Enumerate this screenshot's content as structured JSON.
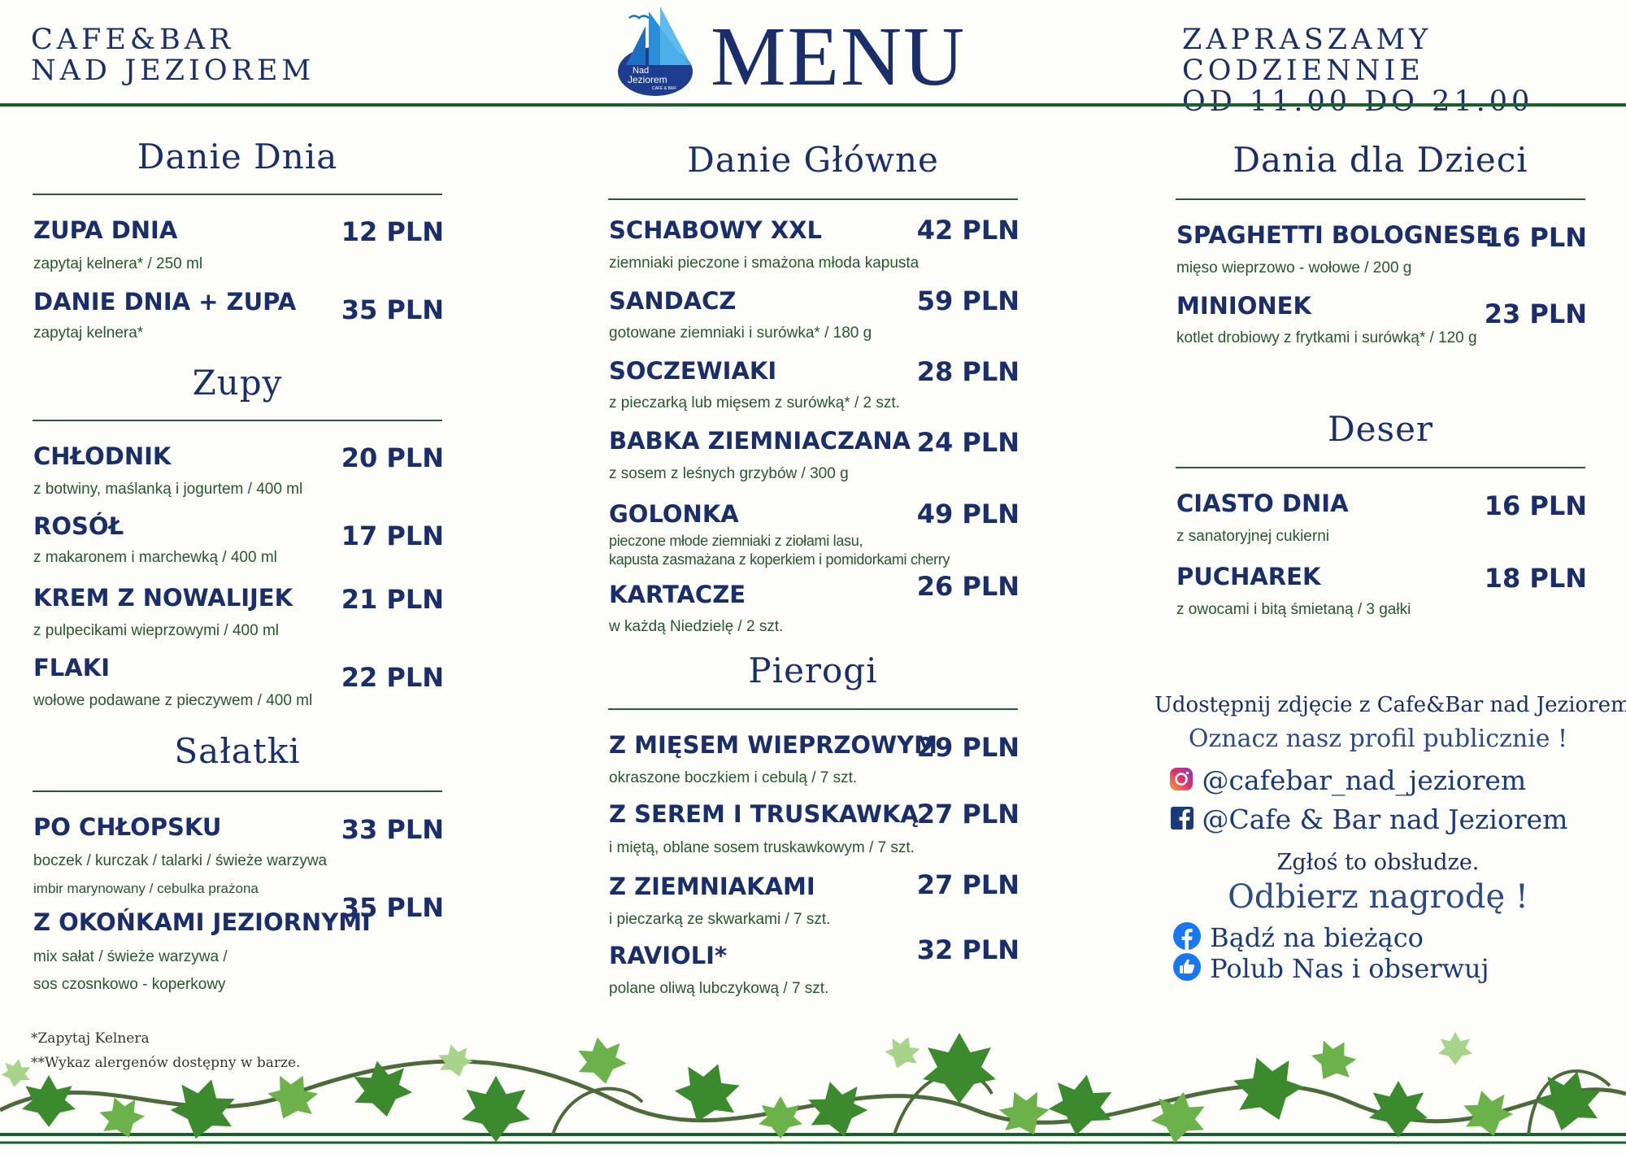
{
  "header": {
    "brand_line1": "CAFE&BAR",
    "brand_line2": "NAD JEZIOREM",
    "title": "MENU",
    "logo_text_line1": "Nad",
    "logo_text_line2": "Jeziorem",
    "logo_text_line3": "CAFE & BAR",
    "hours_line1": "ZAPRASZAMY CODZIENNIE",
    "hours_line2": "OD 11.00 DO 21.00"
  },
  "danie_dnia": {
    "heading": "Danie Dnia",
    "items": [
      {
        "name": "ZUPA DNIA",
        "desc": "zapytaj kelnera* / 250 ml",
        "price": "12 PLN"
      },
      {
        "name": "DANIE DNIA + ZUPA",
        "desc": "zapytaj kelnera*",
        "price": "35 PLN"
      }
    ]
  },
  "zupy": {
    "heading": "Zupy",
    "items": [
      {
        "name": "CHŁODNIK",
        "desc": "z botwiny, maślanką i jogurtem / 400 ml",
        "price": "20 PLN"
      },
      {
        "name": "ROSÓŁ",
        "desc": "z makaronem i marchewką / 400 ml",
        "price": "17 PLN"
      },
      {
        "name": "KREM Z NOWALIJEK",
        "desc": "z pulpecikami wieprzowymi / 400 ml",
        "price": "21 PLN"
      },
      {
        "name": "FLAKI",
        "desc": "wołowe podawane z pieczywem / 400 ml",
        "price": "22 PLN"
      }
    ]
  },
  "salatki": {
    "heading": "Sałatki",
    "items": [
      {
        "name": "PO CHŁOPSKU",
        "desc": "boczek / kurczak / talarki / świeże warzywa",
        "desc_extra": "imbir marynowany / cebulka prażona",
        "price": "33 PLN"
      },
      {
        "name": "Z OKOŃKAMI JEZIORNYMI",
        "desc": "mix sałat / świeże warzywa /",
        "desc_extra": "sos czosnkowo - koperkowy",
        "price": "35 PLN"
      }
    ]
  },
  "footnotes": {
    "note1": "*Zapytaj Kelnera",
    "note2": "**Wykaz alergenów dostępny w barze."
  },
  "danie_glowne": {
    "heading": "Danie Główne",
    "items": [
      {
        "name": "SCHABOWY XXL",
        "desc": "ziemniaki pieczone i smażona młoda kapusta",
        "price": "42 PLN"
      },
      {
        "name": "SANDACZ",
        "desc": "gotowane ziemniaki i surówka* / 180 g",
        "price": "59 PLN"
      },
      {
        "name": "SOCZEWIAKI",
        "desc": "z pieczarką lub mięsem z surówką* / 2 szt.",
        "price": "28 PLN"
      },
      {
        "name": "BABKA ZIEMNIACZANA",
        "desc": "z sosem z leśnych grzybów / 300 g",
        "price": "24 PLN"
      },
      {
        "name": "GOLONKA",
        "desc": "pieczone młode ziemniaki z ziołami lasu,\nkapusta zasmażana z koperkiem i pomidorkami cherry",
        "price": "49 PLN"
      },
      {
        "name": "KARTACZE",
        "desc": "w każdą Niedzielę / 2 szt.",
        "price": "26 PLN"
      }
    ]
  },
  "pierogi": {
    "heading": "Pierogi",
    "items": [
      {
        "name": "Z MIĘSEM WIEPRZOWYM",
        "desc": "okraszone boczkiem i cebulą / 7 szt.",
        "price": "29 PLN"
      },
      {
        "name": "Z SEREM I TRUSKAWKĄ",
        "desc": "i miętą, oblane sosem truskawkowym / 7 szt.",
        "price": "27 PLN"
      },
      {
        "name": "Z ZIEMNIAKAMI",
        "desc": "i pieczarką ze skwarkami / 7 szt.",
        "price": "27 PLN"
      },
      {
        "name": "RAVIOLI*",
        "desc": "polane oliwą lubczykową / 7 szt.",
        "price": "32 PLN"
      }
    ]
  },
  "dzieci": {
    "heading": "Dania dla Dzieci",
    "items": [
      {
        "name": "SPAGHETTI BOLOGNESE",
        "desc": "mięso wieprzowo - wołowe / 200 g",
        "price": "16 PLN"
      },
      {
        "name": "MINIONEK",
        "desc": "kotlet drobiowy z frytkami i surówką* / 120 g",
        "price": "23 PLN"
      }
    ]
  },
  "deser": {
    "heading": "Deser",
    "items": [
      {
        "name": "CIASTO DNIA",
        "desc": "z sanatoryjnej cukierni",
        "price": "16 PLN"
      },
      {
        "name": "PUCHAREK",
        "desc": "z owocami i bitą śmietaną / 3 gałki",
        "price": "18 PLN"
      }
    ]
  },
  "promo": {
    "line1": "Udostępnij zdjęcie z Cafe&Bar nad Jeziorem",
    "line2": "Oznacz nasz profil publicznie !",
    "instagram": "@cafebar_nad_jeziorem",
    "facebook": "@Cafe & Bar nad Jeziorem",
    "line3": "Zgłoś to obsłudze.",
    "line4": "Odbierz nagrodę !",
    "follow1": "Bądź na bieżąco",
    "follow2": "Polub Nas i obserwuj"
  },
  "colors": {
    "navy": "#1a2e6b",
    "green_line": "#1c5e2c",
    "desc_green": "#27562f",
    "promo_blue": "#2c4a8a",
    "facebook_blue": "#1877f2",
    "background": "#fdfdfa"
  },
  "icons": {
    "instagram": "instagram-icon",
    "facebook": "facebook-icon",
    "like": "thumbs-up-icon",
    "logo": "sailboat-logo"
  }
}
